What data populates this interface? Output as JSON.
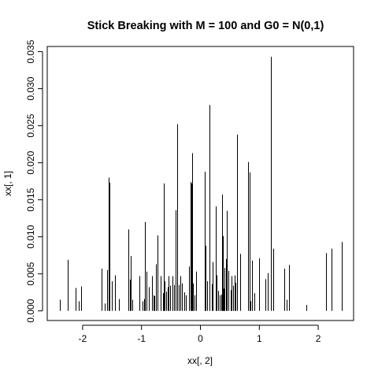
{
  "chart_data": {
    "type": "bar",
    "title": "Stick Breaking with M = 100 and G0 = N(0,1)",
    "xlabel": "xx[, 2]",
    "ylabel": "xx[, 1]",
    "xlim": [
      -2.6,
      2.6
    ],
    "ylim": [
      -0.0013,
      0.0357
    ],
    "xticks": [
      -2,
      -1,
      0,
      1,
      2
    ],
    "xtick_labels": [
      "-2",
      "-1",
      "0",
      "1",
      "2"
    ],
    "yticks": [
      0.0,
      0.005,
      0.01,
      0.015,
      0.02,
      0.025,
      0.03,
      0.035
    ],
    "ytick_labels": [
      "0.000",
      "0.005",
      "0.010",
      "0.015",
      "0.020",
      "0.025",
      "0.030",
      "0.035"
    ],
    "grid": false,
    "series": [
      {
        "x": [
          -2.38,
          -2.25,
          -2.12,
          -2.07,
          -2.02,
          -1.68,
          -1.62,
          -1.58,
          -1.56,
          -1.55,
          -1.51,
          -1.45,
          -1.38,
          -1.22,
          -1.19,
          -1.18,
          -1.15,
          -1.03,
          -0.98,
          -0.95,
          -0.94,
          -0.91,
          -0.87,
          -0.82,
          -0.79,
          -0.78,
          -0.76,
          -0.75,
          -0.73,
          -0.67,
          -0.64,
          -0.62,
          -0.61,
          -0.58,
          -0.56,
          -0.54,
          -0.51,
          -0.47,
          -0.45,
          -0.42,
          -0.39,
          -0.37,
          -0.34,
          -0.31,
          -0.27,
          -0.25,
          -0.2,
          -0.17,
          -0.15,
          -0.14,
          -0.13,
          -0.1,
          -0.08,
          0.07,
          0.08,
          0.09,
          0.12,
          0.15,
          0.19,
          0.21,
          0.26,
          0.28,
          0.3,
          0.33,
          0.35,
          0.37,
          0.38,
          0.39,
          0.41,
          0.43,
          0.45,
          0.48,
          0.51,
          0.53,
          0.55,
          0.58,
          0.6,
          0.62,
          0.67,
          0.81,
          0.84,
          0.85,
          0.87,
          0.91,
          1.0,
          1.1,
          1.14,
          1.2,
          1.23,
          1.24,
          1.43,
          1.46,
          1.5,
          1.8,
          2.13,
          2.22,
          2.4
        ],
        "values": [
          0.0015,
          0.0069,
          0.0031,
          0.0013,
          0.0033,
          0.0057,
          0.001,
          0.0055,
          0.018,
          0.0173,
          0.004,
          0.0048,
          0.0016,
          0.011,
          0.0042,
          0.0074,
          0.0015,
          0.0047,
          0.0013,
          0.0016,
          0.012,
          0.0053,
          0.0032,
          0.0047,
          0.0021,
          0.002,
          0.0036,
          0.0063,
          0.0102,
          0.0047,
          0.0024,
          0.0172,
          0.004,
          0.0026,
          0.0032,
          0.0047,
          0.0034,
          0.0047,
          0.0035,
          0.0136,
          0.0252,
          0.0035,
          0.0047,
          0.0037,
          0.0025,
          0.0021,
          0.006,
          0.0174,
          0.0172,
          0.0213,
          0.0037,
          0.0021,
          0.0053,
          0.0048,
          0.0188,
          0.0088,
          0.004,
          0.0278,
          0.0036,
          0.0066,
          0.0141,
          0.0048,
          0.0027,
          0.0021,
          0.0022,
          0.0157,
          0.0101,
          0.003,
          0.0058,
          0.007,
          0.0135,
          0.0054,
          0.0028,
          0.0047,
          0.0034,
          0.0048,
          0.0038,
          0.0238,
          0.0077,
          0.0201,
          0.0187,
          0.0013,
          0.0068,
          0.0024,
          0.0071,
          0.0043,
          0.0051,
          0.0343,
          0.0084,
          0.0014,
          0.0057,
          0.0015,
          0.0062,
          0.0008,
          0.0078,
          0.0084,
          0.0093
        ]
      }
    ]
  }
}
